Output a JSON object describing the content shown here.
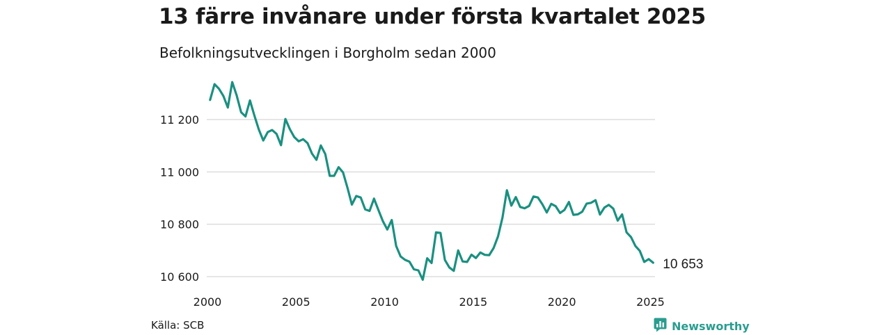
{
  "title": "13 färre invånare under första kvartalet 2025",
  "subtitle": "Befolkningsutvecklingen i Borgholm sedan 2000",
  "source": "Källa: SCB",
  "brand": {
    "name": "Newsworthy",
    "icon": "newsworthy-logo-icon",
    "color": "#2a9d8f"
  },
  "colors": {
    "line": "#1a9080",
    "grid": "#dddddd",
    "text": "#1a1a1a"
  },
  "chart_data": {
    "type": "line",
    "title": "",
    "xlabel": "",
    "ylabel": "",
    "x_unit": "year",
    "xlim": [
      2000,
      2025.1
    ],
    "ylim": [
      10600,
      11200
    ],
    "x_ticks": [
      2000,
      2005,
      2010,
      2015,
      2020,
      2025
    ],
    "x_tick_labels": [
      "2000",
      "2005",
      "2010",
      "2015",
      "2020",
      "2025"
    ],
    "y_ticks": [
      10600,
      10800,
      11000,
      11200
    ],
    "y_tick_labels": [
      "10 600",
      "10 800",
      "11 000",
      "11 200"
    ],
    "grid": "horizontal",
    "end_label": "10 653",
    "series": [
      {
        "x": [
          2000.15,
          2000.4,
          2000.65,
          2000.9,
          2001.15,
          2001.4,
          2001.65,
          2001.9,
          2002.15,
          2002.4,
          2002.65,
          2002.9,
          2003.15,
          2003.4,
          2003.65,
          2003.9,
          2004.15,
          2004.4,
          2004.65,
          2004.9,
          2005.15,
          2005.4,
          2005.65,
          2005.9,
          2006.15,
          2006.4,
          2006.65,
          2006.9,
          2007.15,
          2007.4,
          2007.65,
          2007.9,
          2008.15,
          2008.4,
          2008.65,
          2008.9,
          2009.15,
          2009.4,
          2009.65,
          2009.9,
          2010.15,
          2010.4,
          2010.65,
          2010.9,
          2011.15,
          2011.4,
          2011.65,
          2011.9,
          2012.15,
          2012.4,
          2012.65,
          2012.9,
          2013.15,
          2013.4,
          2013.65,
          2013.9,
          2014.15,
          2014.4,
          2014.65,
          2014.9,
          2015.15,
          2015.4,
          2015.65,
          2015.9,
          2016.15,
          2016.4,
          2016.65,
          2016.9,
          2017.15,
          2017.4,
          2017.65,
          2017.9,
          2018.15,
          2018.4,
          2018.65,
          2018.9,
          2019.15,
          2019.4,
          2019.65,
          2019.9,
          2020.15,
          2020.4,
          2020.65,
          2020.9,
          2021.15,
          2021.4,
          2021.65,
          2021.9,
          2022.15,
          2022.4,
          2022.65,
          2022.9,
          2023.15,
          2023.4,
          2023.65,
          2023.9,
          2024.15,
          2024.4,
          2024.65,
          2024.9,
          2025.15
        ],
        "values": [
          11275,
          11335,
          11318,
          11290,
          11246,
          11343,
          11292,
          11228,
          11212,
          11273,
          11215,
          11162,
          11120,
          11152,
          11160,
          11145,
          11102,
          11202,
          11163,
          11133,
          11117,
          11125,
          11110,
          11070,
          11046,
          11101,
          11068,
          10985,
          10985,
          11018,
          10998,
          10940,
          10875,
          10908,
          10902,
          10857,
          10851,
          10898,
          10854,
          10812,
          10780,
          10816,
          10717,
          10677,
          10664,
          10657,
          10628,
          10624,
          10588,
          10670,
          10652,
          10769,
          10767,
          10664,
          10635,
          10622,
          10700,
          10658,
          10656,
          10684,
          10671,
          10692,
          10683,
          10682,
          10709,
          10754,
          10826,
          10930,
          10871,
          10904,
          10866,
          10861,
          10870,
          10906,
          10902,
          10876,
          10845,
          10878,
          10869,
          10843,
          10855,
          10885,
          10836,
          10838,
          10848,
          10879,
          10882,
          10892,
          10837,
          10864,
          10874,
          10860,
          10814,
          10838,
          10769,
          10751,
          10717,
          10698,
          10656,
          10667,
          10653
        ]
      }
    ]
  }
}
